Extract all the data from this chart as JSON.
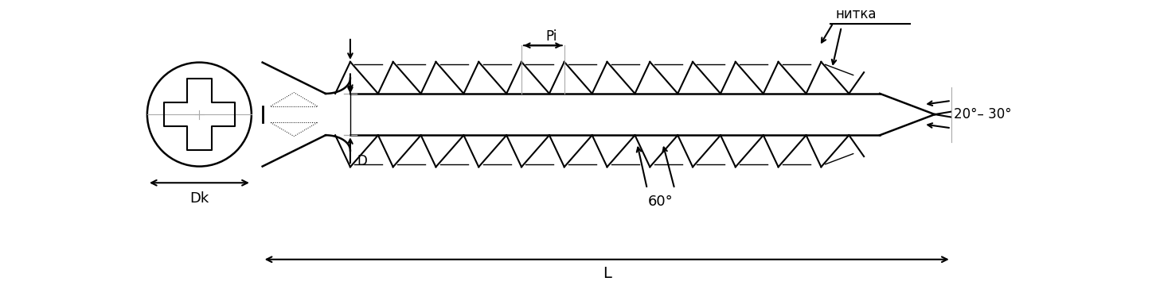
{
  "bg_color": "#ffffff",
  "line_color": "#000000",
  "figsize": [
    14.52,
    3.64
  ],
  "dpi": 100,
  "gray_color": "#aaaaaa",
  "labels": {
    "Dk": "Dk",
    "L": "L",
    "D": "D",
    "Pi": "Pi",
    "nitka": "нитка",
    "angle1": "20°– 30°",
    "angle2": "60°"
  }
}
